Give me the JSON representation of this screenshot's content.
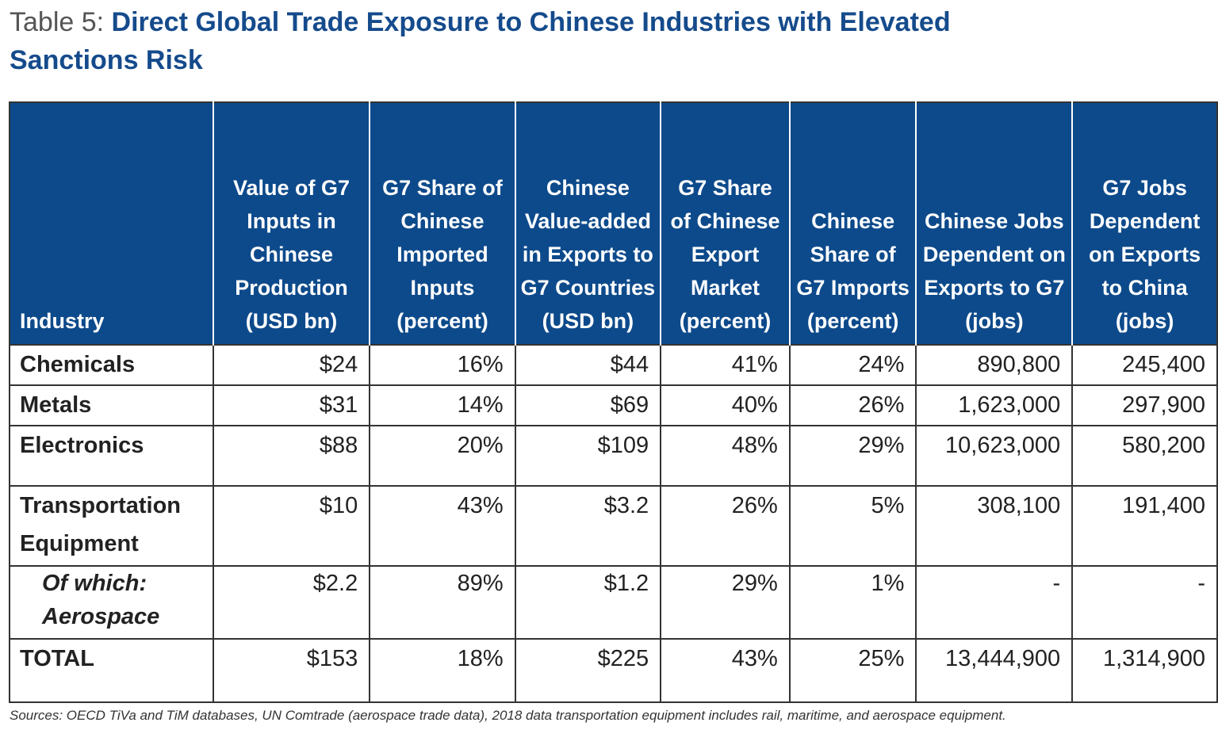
{
  "title": {
    "prefix": "Table 5: ",
    "main": "Direct Global Trade Exposure to Chinese Industries with Elevated Sanctions Risk"
  },
  "headers": [
    "Industry",
    "Value of G7 Inputs in Chinese Production (USD bn)",
    "G7 Share of Chinese Imported Inputs (percent)",
    "Chinese Value-added in Exports to G7 Countries (USD bn)",
    "G7 Share of Chinese Export Market (percent)",
    "Chinese Share of G7 Imports (percent)",
    "Chinese Jobs Dependent on Exports to G7 (jobs)",
    "G7 Jobs Dependent on Exports to China (jobs)"
  ],
  "rows": [
    [
      "Chemicals",
      "$24",
      "16%",
      "$44",
      "41%",
      "24%",
      "890,800",
      "245,400"
    ],
    [
      "Metals",
      "$31",
      "14%",
      "$69",
      "40%",
      "26%",
      "1,623,000",
      "297,900"
    ],
    [
      "Electronics",
      "$88",
      "20%",
      "$109",
      "48%",
      "29%",
      "10,623,000",
      "580,200"
    ],
    [
      "Transportation Equipment",
      "$10",
      "43%",
      "$3.2",
      "26%",
      "5%",
      "308,100",
      "191,400"
    ],
    [
      "Of which: Aerospace",
      "$2.2",
      "89%",
      "$1.2",
      "29%",
      "1%",
      "-",
      "-"
    ],
    [
      "TOTAL",
      "$153",
      "18%",
      "$225",
      "43%",
      "25%",
      "13,444,900",
      "1,314,900"
    ]
  ],
  "footnote": "Sources: OECD TiVa and TiM databases, UN Comtrade (aerospace trade data), 2018 data transportation equipment includes rail, maritime, and aerospace equipment."
}
